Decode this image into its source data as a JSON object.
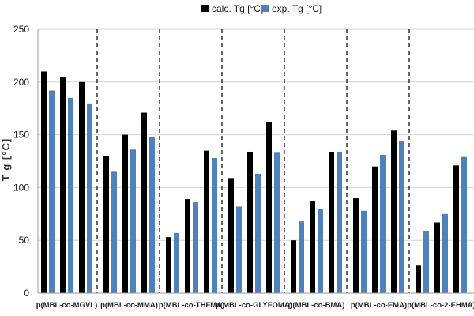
{
  "chart_data": {
    "type": "bar",
    "categories": [
      "p(MBL-co-MGVL)",
      "p(MBL-co-MMA)",
      "p(MBL-co-THFMA)",
      "p(MBL-co-GLYFOMA)",
      "p(MBL-co-BMA)",
      "p(MBL-co-EMA)",
      "p(MBL-co-2-EHMA)"
    ],
    "bars_per_category": 3,
    "series": [
      {
        "name": "calc. Tg [°C]",
        "color": "#000000",
        "values": [
          [
            210,
            205,
            200
          ],
          [
            130,
            150,
            171
          ],
          [
            53,
            89,
            135
          ],
          [
            109,
            134,
            162
          ],
          [
            50,
            87,
            134
          ],
          [
            90,
            120,
            154
          ],
          [
            26,
            67,
            121
          ]
        ]
      },
      {
        "name": "exp. Tg [°C]",
        "color": "#4f81bd",
        "values": [
          [
            192,
            185,
            179
          ],
          [
            115,
            136,
            148
          ],
          [
            57,
            86,
            128
          ],
          [
            82,
            113,
            133
          ],
          [
            68,
            80,
            134
          ],
          [
            78,
            131,
            144
          ],
          [
            59,
            75,
            129
          ]
        ]
      }
    ],
    "ylabel": "T g  [°C]",
    "ylim": [
      0,
      250
    ],
    "yticks": [
      "0",
      "50",
      "100",
      "150",
      "200",
      "250"
    ],
    "grid": "horizontal, solid light gray",
    "group_separators": "dashed vertical lines",
    "legend_position": "top-center"
  }
}
